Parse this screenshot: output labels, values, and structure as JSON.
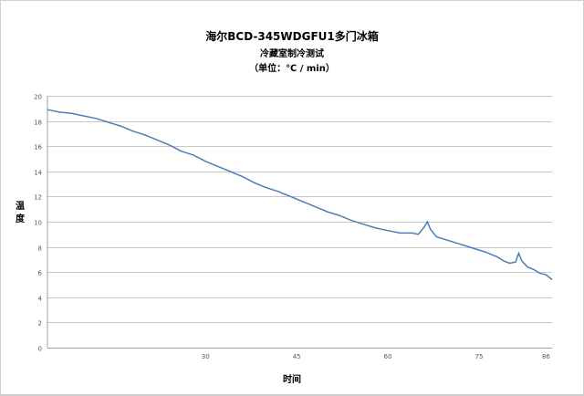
{
  "chart": {
    "title": "海尔BCD-345WDGFU1多门冰箱",
    "subtitle": "冷藏室制冷测试",
    "unit": "（单位：℃ / min）",
    "xlabel": "时间",
    "ylabel": "温度"
  },
  "chart_data": {
    "type": "line",
    "title": "海尔BCD-345WDGFU1多门冰箱",
    "subtitle": "冷藏室制冷测试 （单位：℃ / min）",
    "xlabel": "时间",
    "ylabel": "温度",
    "xlim": [
      4,
      87
    ],
    "ylim": [
      0,
      20
    ],
    "y_ticks": [
      0,
      2,
      4,
      6,
      8,
      10,
      12,
      14,
      16,
      18,
      20
    ],
    "x_ticks": [
      30,
      45,
      60,
      75,
      86
    ],
    "grid": "horizontal",
    "legend": "none",
    "series": [
      {
        "name": "温度",
        "color": "#4a7ebb",
        "x": [
          4,
          6,
          8,
          10,
          12,
          14,
          16,
          18,
          20,
          22,
          24,
          26,
          28,
          30,
          32,
          34,
          36,
          38,
          40,
          42,
          44,
          46,
          48,
          50,
          52,
          54,
          56,
          58,
          60,
          62,
          64,
          65,
          66,
          66.5,
          67,
          68,
          70,
          72,
          74,
          76,
          78,
          79,
          80,
          81,
          81.5,
          82,
          83,
          84,
          85,
          86,
          87
        ],
        "values": [
          18.9,
          18.7,
          18.6,
          18.4,
          18.2,
          17.9,
          17.6,
          17.2,
          16.9,
          16.5,
          16.1,
          15.6,
          15.3,
          14.8,
          14.4,
          14.0,
          13.6,
          13.1,
          12.7,
          12.4,
          12.0,
          11.6,
          11.2,
          10.8,
          10.5,
          10.1,
          9.8,
          9.5,
          9.3,
          9.1,
          9.1,
          9.0,
          9.6,
          10.0,
          9.4,
          8.8,
          8.5,
          8.2,
          7.9,
          7.6,
          7.2,
          6.9,
          6.7,
          6.8,
          7.5,
          6.9,
          6.4,
          6.2,
          5.9,
          5.8,
          5.4
        ]
      }
    ]
  }
}
